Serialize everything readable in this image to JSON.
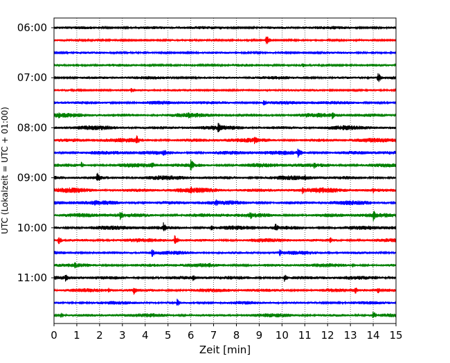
{
  "chart_data": {
    "type": "line",
    "subtype": "helicorder",
    "title": "",
    "xlabel": "Zeit  [min]",
    "ylabel": "UTC (Lokalzeit = UTC + 01:00)",
    "xlim": [
      0,
      15
    ],
    "x_ticks": [
      0,
      1,
      2,
      3,
      4,
      5,
      6,
      7,
      8,
      9,
      10,
      11,
      12,
      13,
      14,
      15
    ],
    "x_tick_labels": [
      "0",
      "1",
      "2",
      "3",
      "4",
      "5",
      "6",
      "7",
      "8",
      "9",
      "10",
      "11",
      "12",
      "13",
      "14",
      "15"
    ],
    "vertical_grid": true,
    "grid_style": "dotted",
    "trace_interval_minutes": 15,
    "trace_colors": [
      "#000000",
      "#ff0000",
      "#0000ff",
      "#008000"
    ],
    "y_tick_labels": [
      {
        "trace": 0,
        "label": "06:00"
      },
      {
        "trace": 4,
        "label": "07:00"
      },
      {
        "trace": 8,
        "label": "08:00"
      },
      {
        "trace": 12,
        "label": "09:00"
      },
      {
        "trace": 16,
        "label": "10:00"
      },
      {
        "trace": 20,
        "label": "11:00"
      }
    ],
    "traces": [
      {
        "start": "06:00",
        "color": "#000000",
        "noise": 2,
        "events": [
          {
            "x": 7.3,
            "amp": 3
          }
        ]
      },
      {
        "start": "06:15",
        "color": "#ff0000",
        "noise": 1,
        "events": [
          {
            "x": 1.8,
            "amp": 3
          },
          {
            "x": 9.3,
            "amp": 9
          }
        ]
      },
      {
        "start": "06:30",
        "color": "#0000ff",
        "noise": 1.2,
        "events": []
      },
      {
        "start": "06:45",
        "color": "#008000",
        "noise": 1.5,
        "events": [
          {
            "x": 10.9,
            "amp": 4
          }
        ]
      },
      {
        "start": "07:00",
        "color": "#000000",
        "noise": 2,
        "events": [
          {
            "x": 14.2,
            "amp": 9
          }
        ]
      },
      {
        "start": "07:15",
        "color": "#ff0000",
        "noise": 1.5,
        "events": [
          {
            "x": 3.4,
            "amp": 5
          }
        ]
      },
      {
        "start": "07:30",
        "color": "#0000ff",
        "noise": 2.5,
        "events": [
          {
            "x": 4.2,
            "amp": 4
          },
          {
            "x": 9.2,
            "amp": 6
          }
        ]
      },
      {
        "start": "07:45",
        "color": "#008000",
        "noise": 3,
        "events": [
          {
            "x": 0.2,
            "amp": 5
          },
          {
            "x": 5.9,
            "amp": 6
          },
          {
            "x": 12.2,
            "amp": 6
          }
        ]
      },
      {
        "start": "08:00",
        "color": "#000000",
        "noise": 3,
        "events": [
          {
            "x": 7.2,
            "amp": 9
          },
          {
            "x": 12.7,
            "amp": 5
          },
          {
            "x": 2.1,
            "amp": 5
          }
        ]
      },
      {
        "start": "08:15",
        "color": "#ff0000",
        "noise": 3,
        "events": [
          {
            "x": 3.6,
            "amp": 9
          },
          {
            "x": 8.8,
            "amp": 7
          },
          {
            "x": 15.0,
            "amp": 6
          }
        ]
      },
      {
        "start": "08:30",
        "color": "#0000ff",
        "noise": 3,
        "events": [
          {
            "x": 4.8,
            "amp": 7
          },
          {
            "x": 10.7,
            "amp": 9
          }
        ]
      },
      {
        "start": "08:45",
        "color": "#008000",
        "noise": 3,
        "events": [
          {
            "x": 4.3,
            "amp": 6
          },
          {
            "x": 6.0,
            "amp": 10
          },
          {
            "x": 11.4,
            "amp": 6
          },
          {
            "x": 1.2,
            "amp": 5
          }
        ]
      },
      {
        "start": "09:00",
        "color": "#000000",
        "noise": 3,
        "events": [
          {
            "x": 1.9,
            "amp": 10
          },
          {
            "x": 11.0,
            "amp": 5
          }
        ]
      },
      {
        "start": "09:15",
        "color": "#ff0000",
        "noise": 3.5,
        "events": [
          {
            "x": 6.0,
            "amp": 7
          },
          {
            "x": 10.9,
            "amp": 7
          },
          {
            "x": 14.0,
            "amp": 5
          }
        ]
      },
      {
        "start": "09:30",
        "color": "#0000ff",
        "noise": 3,
        "events": [
          {
            "x": 1.8,
            "amp": 6
          },
          {
            "x": 7.1,
            "amp": 6
          },
          {
            "x": 12.9,
            "amp": 5
          }
        ]
      },
      {
        "start": "09:45",
        "color": "#008000",
        "noise": 3,
        "events": [
          {
            "x": 2.9,
            "amp": 8
          },
          {
            "x": 8.6,
            "amp": 7
          },
          {
            "x": 14.0,
            "amp": 9
          }
        ]
      },
      {
        "start": "10:00",
        "color": "#000000",
        "noise": 3,
        "events": [
          {
            "x": 4.8,
            "amp": 8
          },
          {
            "x": 9.7,
            "amp": 8
          },
          {
            "x": 6.9,
            "amp": 5
          }
        ]
      },
      {
        "start": "10:15",
        "color": "#ff0000",
        "noise": 2.5,
        "events": [
          {
            "x": 0.2,
            "amp": 7
          },
          {
            "x": 5.3,
            "amp": 9
          },
          {
            "x": 12.1,
            "amp": 6
          }
        ]
      },
      {
        "start": "10:30",
        "color": "#0000ff",
        "noise": 2.5,
        "events": [
          {
            "x": 4.3,
            "amp": 7
          },
          {
            "x": 9.9,
            "amp": 6
          }
        ]
      },
      {
        "start": "10:45",
        "color": "#008000",
        "noise": 2.5,
        "events": [
          {
            "x": 0.9,
            "amp": 6
          },
          {
            "x": 6.8,
            "amp": 5
          },
          {
            "x": 13.1,
            "amp": 4
          }
        ]
      },
      {
        "start": "11:00",
        "color": "#000000",
        "noise": 2.5,
        "events": [
          {
            "x": 0.5,
            "amp": 6
          },
          {
            "x": 6.1,
            "amp": 5
          },
          {
            "x": 10.1,
            "amp": 6
          },
          {
            "x": 14.1,
            "amp": 4
          }
        ]
      },
      {
        "start": "11:15",
        "color": "#ff0000",
        "noise": 2.5,
        "events": [
          {
            "x": 2.4,
            "amp": 5
          },
          {
            "x": 3.5,
            "amp": 7
          },
          {
            "x": 13.2,
            "amp": 6
          },
          {
            "x": 14.2,
            "amp": 5
          }
        ]
      },
      {
        "start": "11:30",
        "color": "#0000ff",
        "noise": 2,
        "events": [
          {
            "x": 5.4,
            "amp": 6
          },
          {
            "x": 8.0,
            "amp": 3
          }
        ]
      },
      {
        "start": "11:45",
        "color": "#008000",
        "noise": 2.5,
        "events": [
          {
            "x": 0.3,
            "amp": 5
          },
          {
            "x": 14.0,
            "amp": 7
          }
        ]
      }
    ]
  }
}
